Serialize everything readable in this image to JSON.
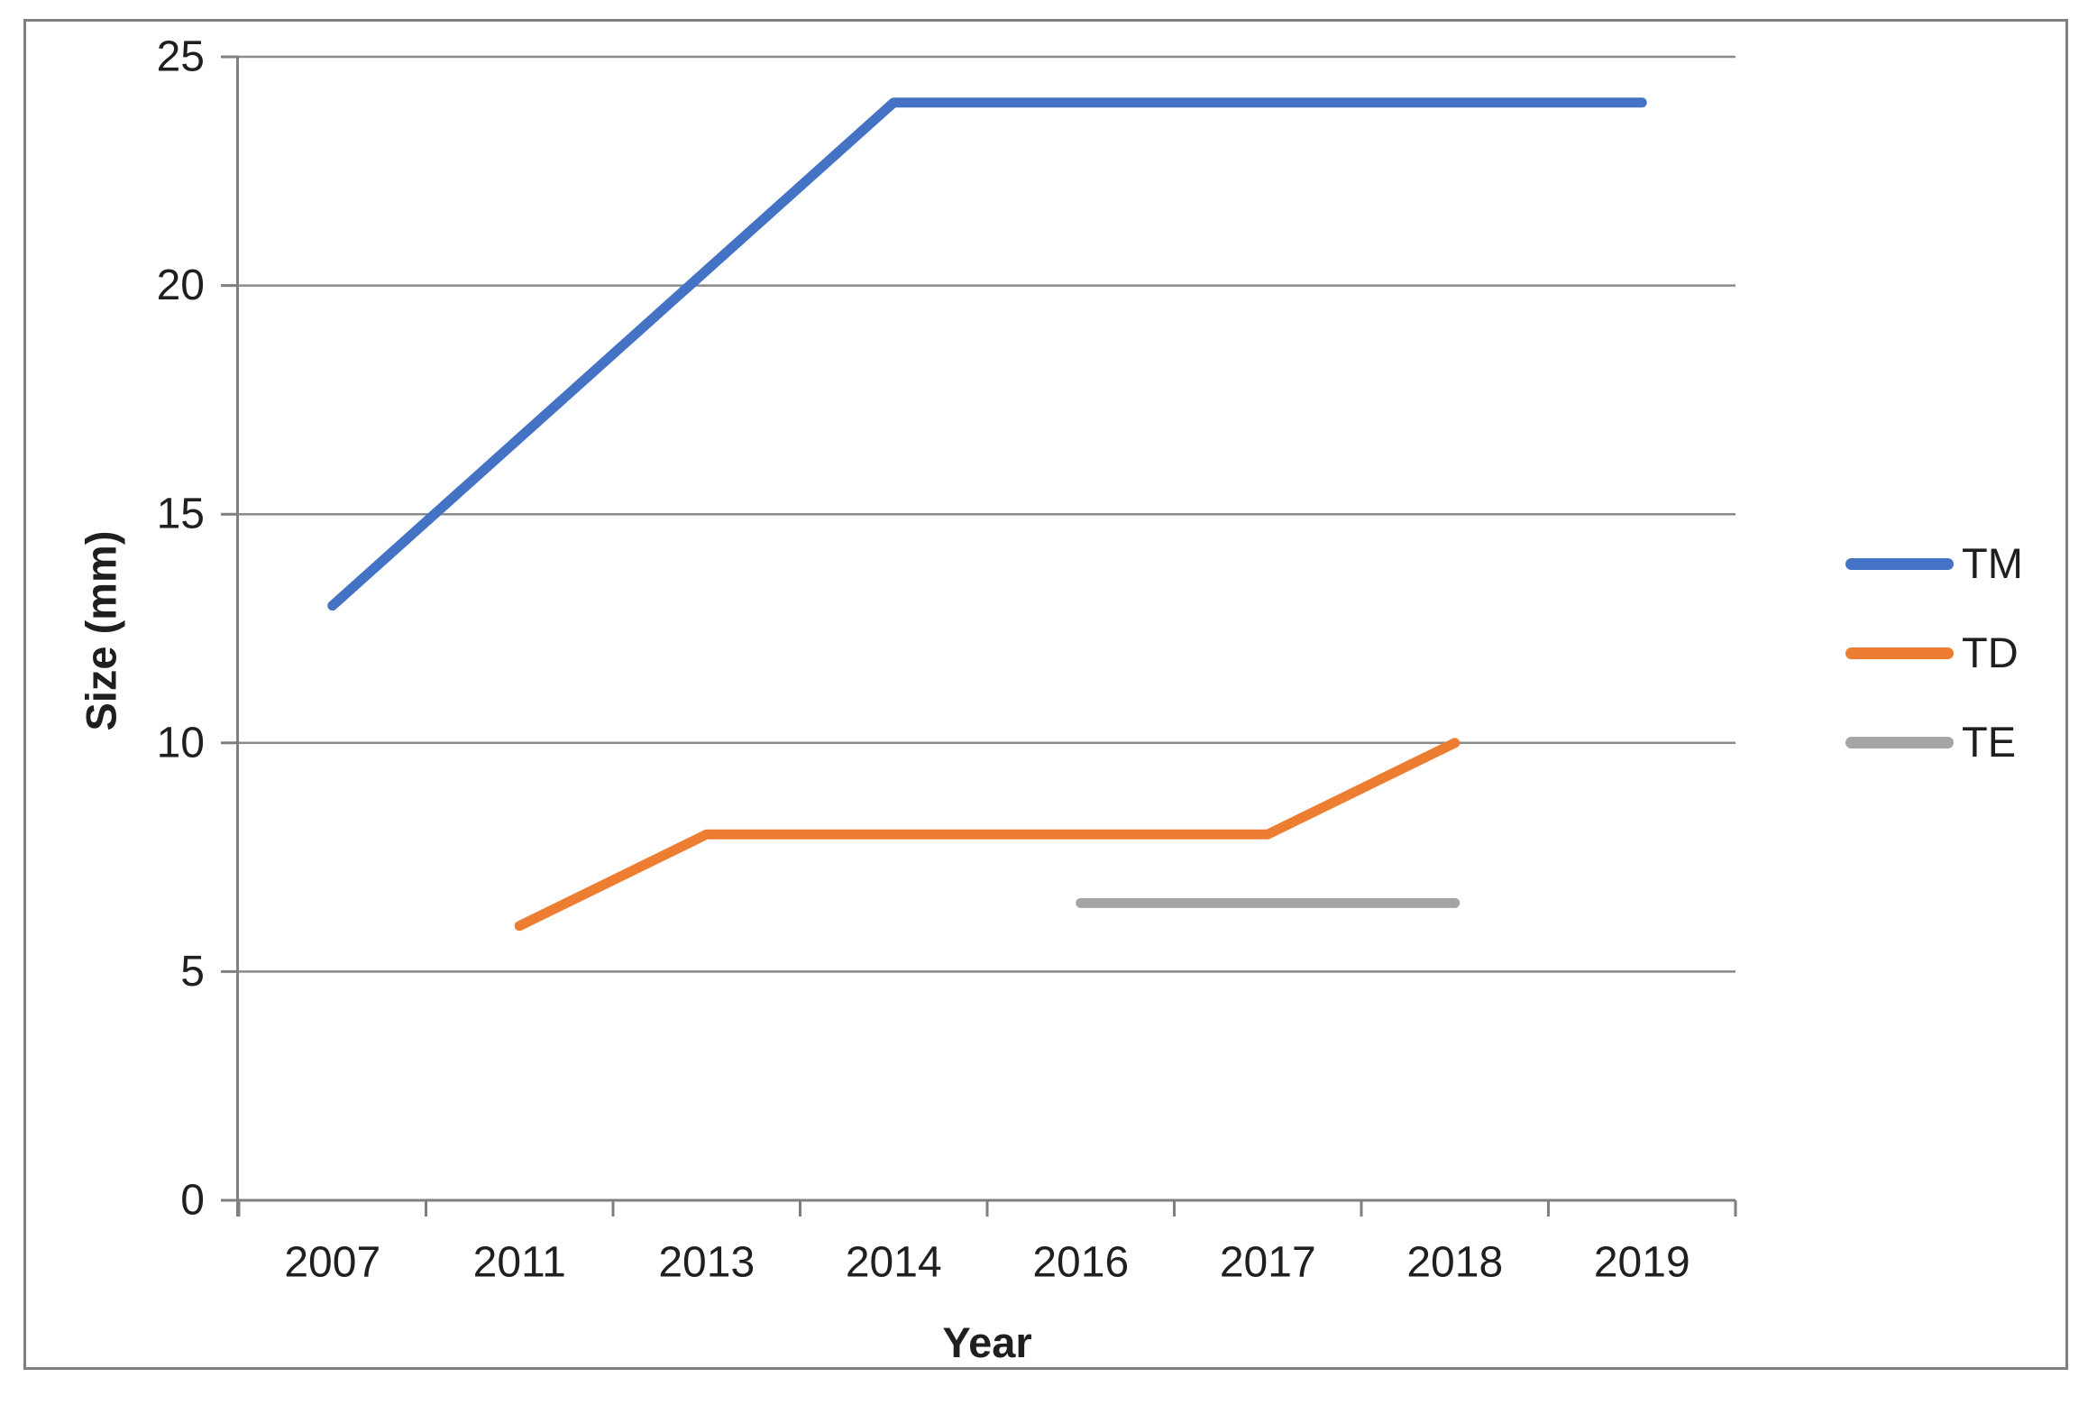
{
  "chart_data": {
    "type": "line",
    "title": "",
    "xlabel": "Year",
    "ylabel": "Size (mm)",
    "categories": [
      "2007",
      "2011",
      "2013",
      "2014",
      "2016",
      "2017",
      "2018",
      "2019"
    ],
    "y_ticks": [
      "0",
      "5",
      "10",
      "15",
      "20",
      "25"
    ],
    "ylim": [
      0,
      25
    ],
    "grid": "horizontal",
    "legend_position": "right",
    "axis_color": "#7f7f7f",
    "gridline_color": "#8a8a8a",
    "series": [
      {
        "name": "TM",
        "color": "#4472C4",
        "values": [
          13,
          null,
          null,
          24,
          24,
          24,
          24,
          24
        ],
        "vertices": [
          [
            "2007",
            13
          ],
          [
            "2014",
            24
          ],
          [
            "2019",
            24
          ]
        ]
      },
      {
        "name": "TD",
        "color": "#ED7D31",
        "values": [
          null,
          6,
          8,
          8,
          8,
          8,
          10,
          null
        ],
        "vertices": [
          [
            "2011",
            6
          ],
          [
            "2013",
            8
          ],
          [
            "2017",
            8
          ],
          [
            "2018",
            10
          ]
        ]
      },
      {
        "name": "TE",
        "color": "#A5A5A5",
        "values": [
          null,
          null,
          null,
          null,
          6.5,
          6.5,
          6.5,
          null
        ],
        "vertices": [
          [
            "2016",
            6.5
          ],
          [
            "2018",
            6.5
          ]
        ]
      }
    ]
  }
}
